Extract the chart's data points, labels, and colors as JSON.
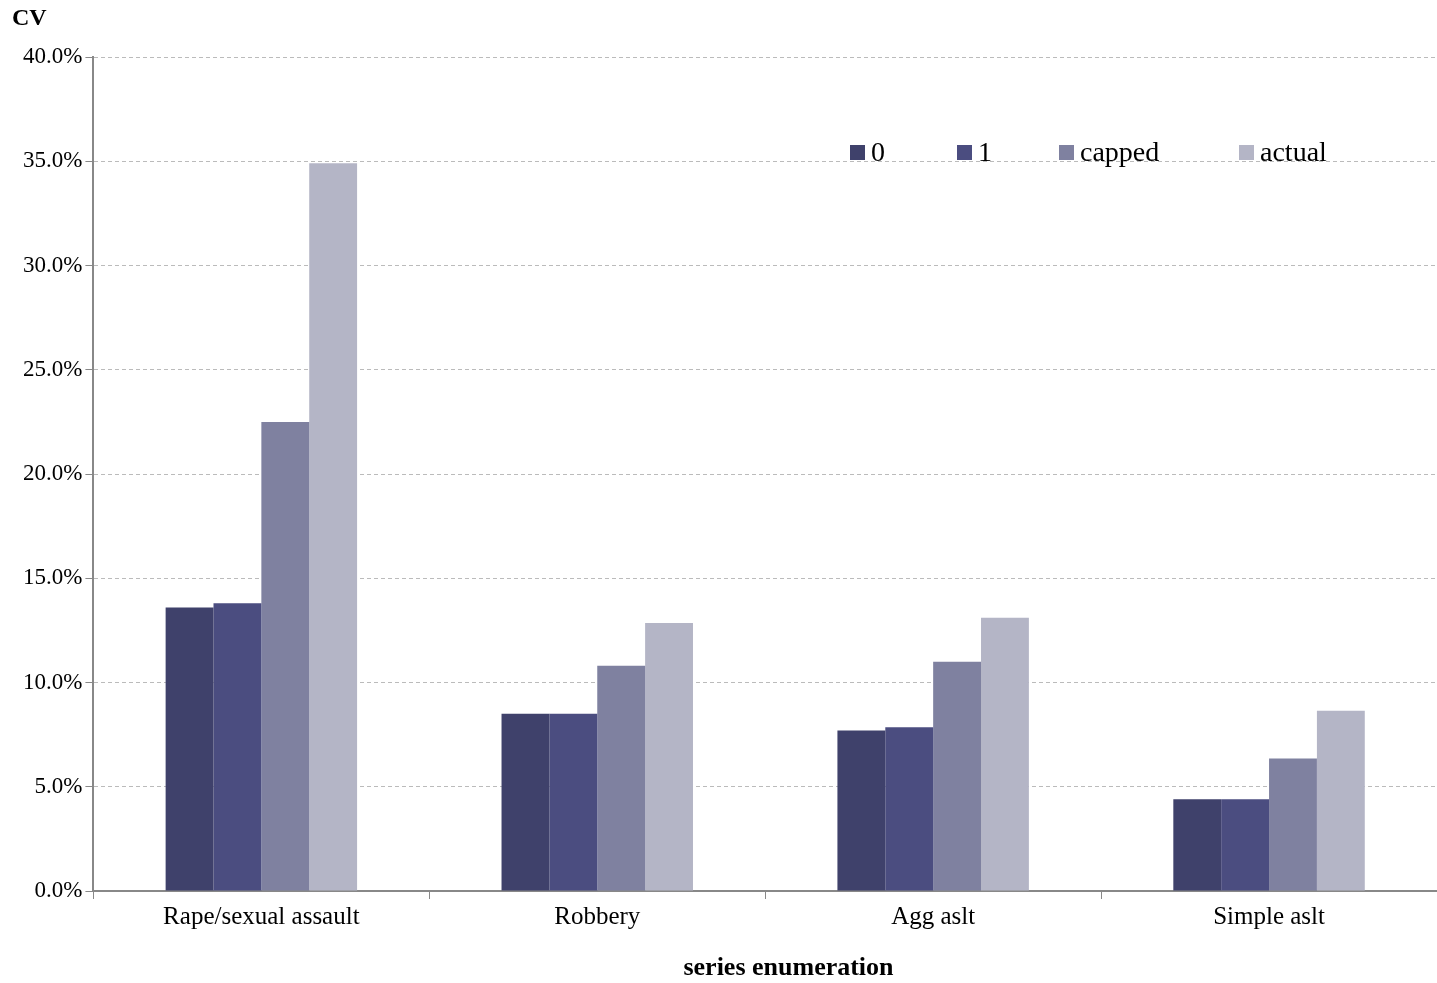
{
  "chart_data": {
    "type": "bar",
    "ylabel": "CV",
    "xlabel": "series enumeration",
    "categories": [
      "Rape/sexual assault",
      "Robbery",
      "Agg aslt",
      "Simple aslt"
    ],
    "series": [
      {
        "name": "0",
        "color": "#3f416b",
        "values": [
          13.6,
          8.5,
          7.7,
          4.4
        ]
      },
      {
        "name": "1",
        "color": "#4b4d80",
        "values": [
          13.8,
          8.5,
          7.85,
          4.4
        ]
      },
      {
        "name": "capped",
        "color": "#7f81a0",
        "values": [
          22.5,
          10.8,
          11.0,
          6.35
        ]
      },
      {
        "name": "actual",
        "color": "#b4b5c6",
        "values": [
          34.9,
          12.85,
          13.1,
          8.65
        ]
      }
    ],
    "ylim": [
      0,
      40
    ],
    "yticks": [
      {
        "value": 0,
        "label": "0.0%"
      },
      {
        "value": 5,
        "label": "5.0%"
      },
      {
        "value": 10,
        "label": "10.0%"
      },
      {
        "value": 15,
        "label": "15.0%"
      },
      {
        "value": 20,
        "label": "20.0%"
      },
      {
        "value": 25,
        "label": "25.0%"
      },
      {
        "value": 30,
        "label": "30.0%"
      },
      {
        "value": 35,
        "label": "35.0%"
      },
      {
        "value": 40,
        "label": "40.0%"
      }
    ],
    "grid": "y",
    "legend": "top right"
  }
}
